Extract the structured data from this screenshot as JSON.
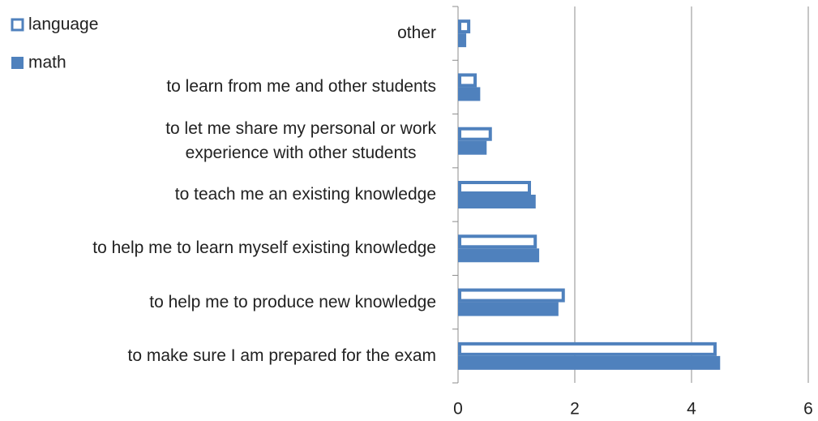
{
  "chart_data": {
    "type": "bar",
    "orientation": "horizontal",
    "categories": [
      "other",
      "to learn from me and other students",
      "to let me share my personal or work\nexperience with other students",
      "to teach me an existing knowledge",
      "to help me to learn myself existing knowledge",
      "to help me to produce new knowledge",
      "to make sure I am prepared for the exam"
    ],
    "series": [
      {
        "name": "language",
        "color": "#4f81bd",
        "style": "outline",
        "values": [
          0.21,
          0.32,
          0.58,
          1.25,
          1.35,
          1.83,
          4.43
        ]
      },
      {
        "name": "math",
        "color": "#4f81bd",
        "style": "solid",
        "values": [
          0.14,
          0.38,
          0.49,
          1.33,
          1.39,
          1.72,
          4.49
        ]
      }
    ],
    "xlim": [
      0,
      6
    ],
    "xticks": [
      0,
      2,
      4,
      6
    ],
    "grid": true,
    "legend": "top-left"
  }
}
